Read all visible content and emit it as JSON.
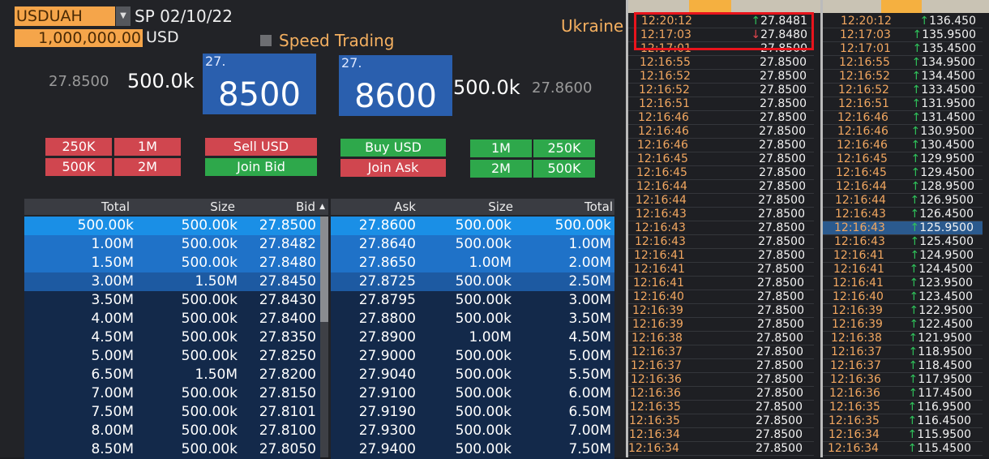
{
  "header": {
    "ticker": "USDUAH",
    "settle": "SP 02/10/22",
    "amount": "1,000,000.00",
    "currency": "USD",
    "speed_trading": "Speed Trading",
    "region": "Ukraine"
  },
  "quote": {
    "bid_price": "27.8500",
    "bid_size": "500.0k",
    "bid_big_prefix": "27.",
    "bid_big": "8500",
    "ask_big_prefix": "27.",
    "ask_big": "8600",
    "ask_size": "500.0k",
    "ask_price": "27.8600"
  },
  "buttons": {
    "sell_sizes": [
      "250K",
      "1M",
      "500K",
      "2M"
    ],
    "sell": "Sell USD",
    "join_bid": "Join Bid",
    "buy": "Buy USD",
    "join_ask": "Join Ask",
    "buy_sizes": [
      "1M",
      "250K",
      "2M",
      "500K"
    ]
  },
  "colors": {
    "sell": "#d0464f",
    "buy": "#2ea84b",
    "accent": "#f5a54a",
    "price_box": "#2a5fae"
  },
  "order_book": {
    "headers": {
      "bid_total": "Total",
      "bid_size": "Size",
      "bid": "Bid",
      "ask": "Ask",
      "ask_size": "Size",
      "ask_total": "Total"
    },
    "bids": [
      [
        "500.00k",
        "500.00k",
        "27.8500"
      ],
      [
        "1.00M",
        "500.00k",
        "27.8482"
      ],
      [
        "1.50M",
        "500.00k",
        "27.8480"
      ],
      [
        "3.00M",
        "1.50M",
        "27.8450"
      ],
      [
        "3.50M",
        "500.00k",
        "27.8430"
      ],
      [
        "4.00M",
        "500.00k",
        "27.8400"
      ],
      [
        "4.50M",
        "500.00k",
        "27.8350"
      ],
      [
        "5.00M",
        "500.00k",
        "27.8250"
      ],
      [
        "6.50M",
        "1.50M",
        "27.8200"
      ],
      [
        "7.00M",
        "500.00k",
        "27.8150"
      ],
      [
        "7.50M",
        "500.00k",
        "27.8101"
      ],
      [
        "8.00M",
        "500.00k",
        "27.8100"
      ],
      [
        "8.50M",
        "500.00k",
        "27.8050"
      ]
    ],
    "asks": [
      [
        "27.8600",
        "500.00k",
        "500.00k"
      ],
      [
        "27.8640",
        "500.00k",
        "1.00M"
      ],
      [
        "27.8650",
        "1.00M",
        "2.00M"
      ],
      [
        "27.8725",
        "500.00k",
        "2.50M"
      ],
      [
        "27.8795",
        "500.00k",
        "3.00M"
      ],
      [
        "27.8800",
        "500.00k",
        "3.50M"
      ],
      [
        "27.8900",
        "1.00M",
        "4.50M"
      ],
      [
        "27.9000",
        "500.00k",
        "5.00M"
      ],
      [
        "27.9040",
        "500.00k",
        "5.50M"
      ],
      [
        "27.9100",
        "500.00k",
        "6.00M"
      ],
      [
        "27.9190",
        "500.00k",
        "6.50M"
      ],
      [
        "27.9300",
        "500.00k",
        "7.00M"
      ],
      [
        "27.9400",
        "500.00k",
        "7.50M"
      ]
    ]
  },
  "ticks_left": {
    "times": [
      "12:20:12",
      "12:17:03",
      "12:17:01",
      "12:16:55",
      "12:16:52",
      "12:16:52",
      "12:16:51",
      "12:16:46",
      "12:16:46",
      "12:16:46",
      "12:16:45",
      "12:16:45",
      "12:16:44",
      "12:16:44",
      "12:16:43",
      "12:16:43",
      "12:16:43",
      "12:16:41",
      "12:16:41",
      "12:16:41",
      "12:16:40",
      "12:16:39",
      "12:16:39",
      "12:16:38",
      "12:16:37",
      "12:16:37",
      "12:16:36",
      "12:16:36",
      "12:16:35",
      "12:16:35",
      "12:16:34",
      "12:16:34"
    ],
    "prices": [
      "27.8481",
      "27.8480",
      "27.8500",
      "27.8500",
      "27.8500",
      "27.8500",
      "27.8500",
      "27.8500",
      "27.8500",
      "27.8500",
      "27.8500",
      "27.8500",
      "27.8500",
      "27.8500",
      "27.8500",
      "27.8500",
      "27.8500",
      "27.8500",
      "27.8500",
      "27.8500",
      "27.8500",
      "27.8500",
      "27.8500",
      "27.8500",
      "27.8500",
      "27.8500",
      "27.8500",
      "27.8500",
      "27.8500",
      "27.8500",
      "27.8500",
      "27.8500"
    ],
    "directions": [
      "up",
      "down"
    ]
  },
  "ticks_right": {
    "times": [
      "12:20:12",
      "12:17:03",
      "12:17:01",
      "12:16:55",
      "12:16:52",
      "12:16:52",
      "12:16:51",
      "12:16:46",
      "12:16:46",
      "12:16:46",
      "12:16:45",
      "12:16:45",
      "12:16:44",
      "12:16:44",
      "12:16:43",
      "12:16:43",
      "12:16:43",
      "12:16:41",
      "12:16:41",
      "12:16:41",
      "12:16:40",
      "12:16:39",
      "12:16:39",
      "12:16:38",
      "12:16:37",
      "12:16:37",
      "12:16:36",
      "12:16:36",
      "12:16:35",
      "12:16:35",
      "12:16:34",
      "12:16:34"
    ],
    "prices": [
      "136.450",
      "135.9500",
      "135.4500",
      "134.9500",
      "134.4500",
      "133.4500",
      "131.9500",
      "131.4500",
      "130.9500",
      "130.4500",
      "129.9500",
      "129.4500",
      "128.9500",
      "126.9500",
      "126.4500",
      "125.9500",
      "125.4500",
      "124.9500",
      "124.4500",
      "123.9500",
      "123.4500",
      "122.9500",
      "122.4500",
      "121.9500",
      "118.9500",
      "118.4500",
      "117.9500",
      "117.4500",
      "116.9500",
      "116.4500",
      "115.9500",
      "115.4500"
    ],
    "direction": "up",
    "selected_row": 15
  }
}
